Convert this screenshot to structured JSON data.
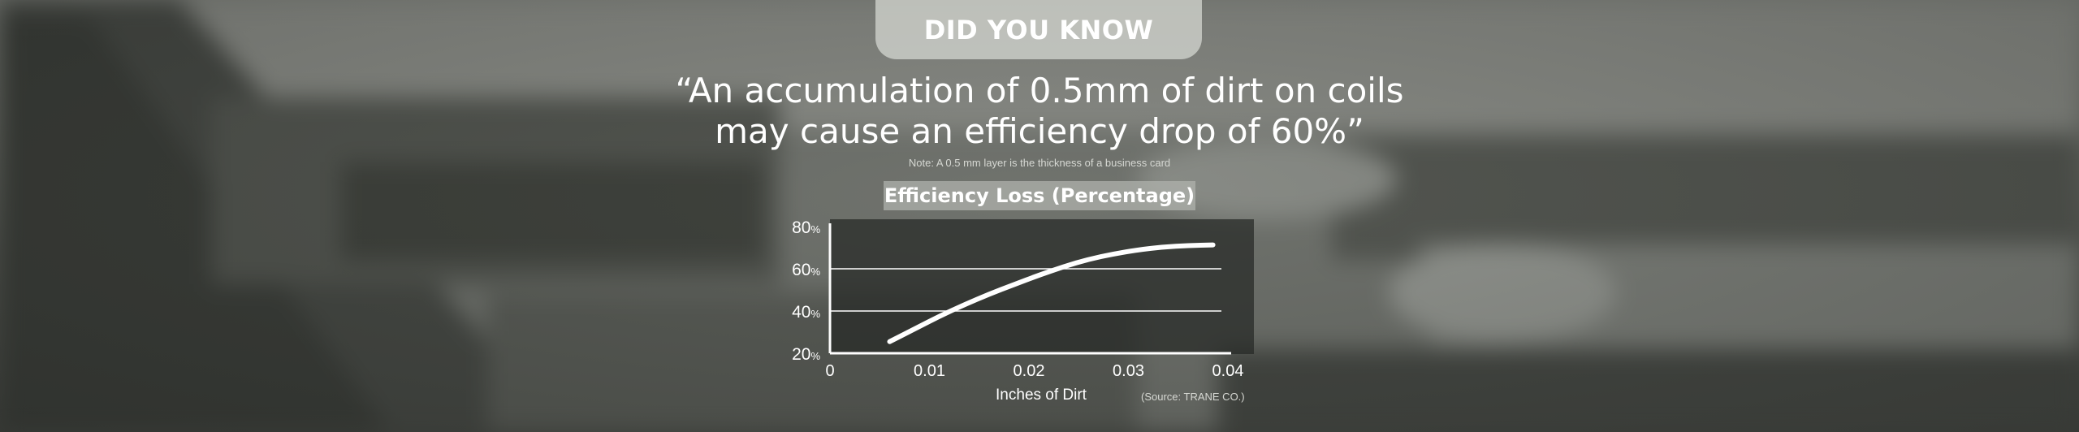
{
  "header": {
    "tab_label": "DID YOU KNOW"
  },
  "quote": {
    "line1": "“An accumulation of 0.5mm of dirt on coils",
    "line2": "may cause an efficiency drop of 60%”"
  },
  "note": "Note: A 0.5 mm layer is the thickness of a business card",
  "source": "(Source: TRANE CO.)",
  "colors": {
    "text": "#ffffff",
    "tab_bg": "#cdcfc9",
    "plot_bg": "#262826",
    "curve": "#ffffff"
  },
  "chart_data": {
    "type": "line",
    "title": "Efficiency Loss (Percentage)",
    "xlabel": "Inches of Dirt",
    "ylabel": "",
    "xlim": [
      0,
      0.04
    ],
    "ylim": [
      20,
      80
    ],
    "x_ticks": [
      0,
      0.01,
      0.02,
      0.03,
      0.04
    ],
    "x_tick_labels": [
      "0",
      "0.01",
      "0.02",
      "0.03",
      "0.04"
    ],
    "y_ticks": [
      20,
      40,
      60,
      80
    ],
    "y_tick_labels": [
      "20",
      "40",
      "60",
      "80"
    ],
    "y_tick_unit": "%",
    "gridlines_y": [
      40,
      60
    ],
    "grid": true,
    "legend": "none",
    "series": [
      {
        "x": [
          0.006,
          0.0085,
          0.011,
          0.0135,
          0.016,
          0.0185,
          0.021,
          0.0235,
          0.026,
          0.0285,
          0.031,
          0.0335,
          0.036,
          0.0385
        ],
        "y": [
          25.5,
          31.5,
          37.5,
          43,
          48,
          52.5,
          57,
          61,
          64.5,
          67,
          69,
          70.3,
          71,
          71.3
        ]
      }
    ]
  }
}
